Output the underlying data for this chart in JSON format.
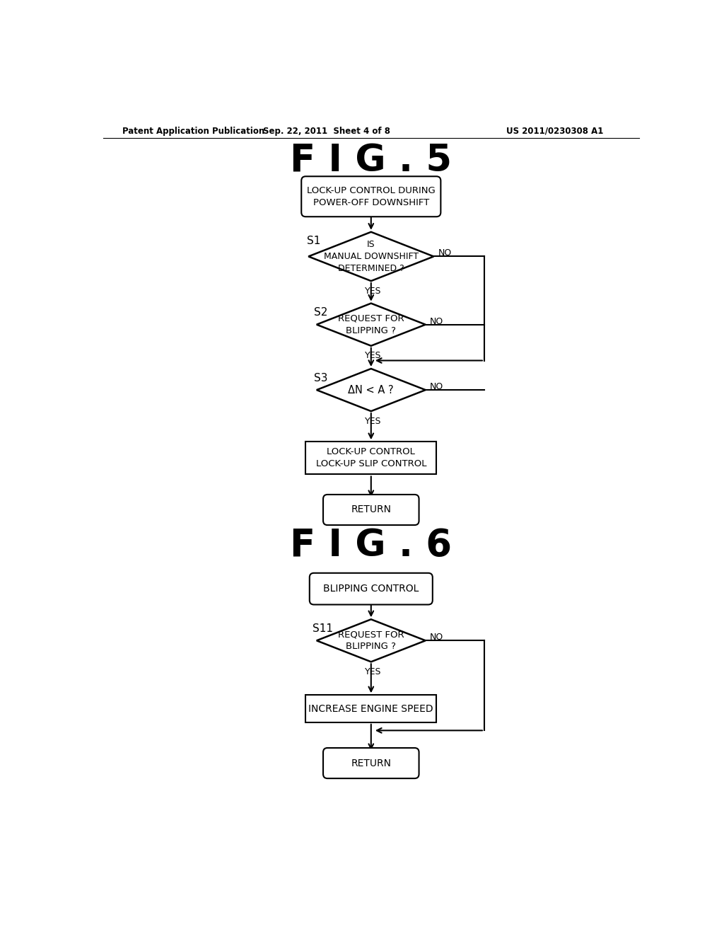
{
  "background_color": "#ffffff",
  "header_left": "Patent Application Publication",
  "header_mid": "Sep. 22, 2011  Sheet 4 of 8",
  "header_right": "US 2011/0230308 A1",
  "fig5_title": "F I G . 5",
  "fig6_title": "F I G . 6"
}
